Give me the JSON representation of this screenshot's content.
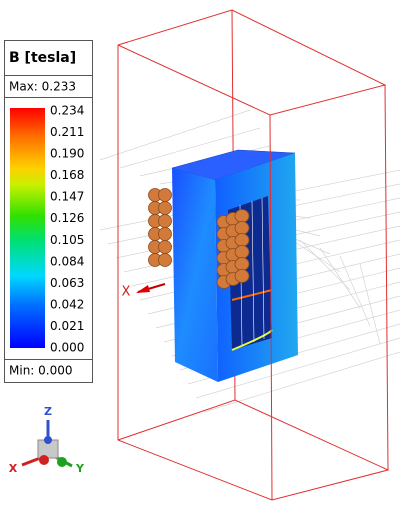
{
  "legend": {
    "title": "B [tesla]",
    "max": "Max: 0.233",
    "min": "Min: 0.000",
    "ticks": [
      "0.234",
      "0.211",
      "0.190",
      "0.168",
      "0.147",
      "0.126",
      "0.105",
      "0.084",
      "0.063",
      "0.042",
      "0.021",
      "0.000"
    ]
  },
  "scene": {
    "axis_label": "X"
  },
  "triad": {
    "x": "X",
    "y": "Y",
    "z": "Z"
  }
}
